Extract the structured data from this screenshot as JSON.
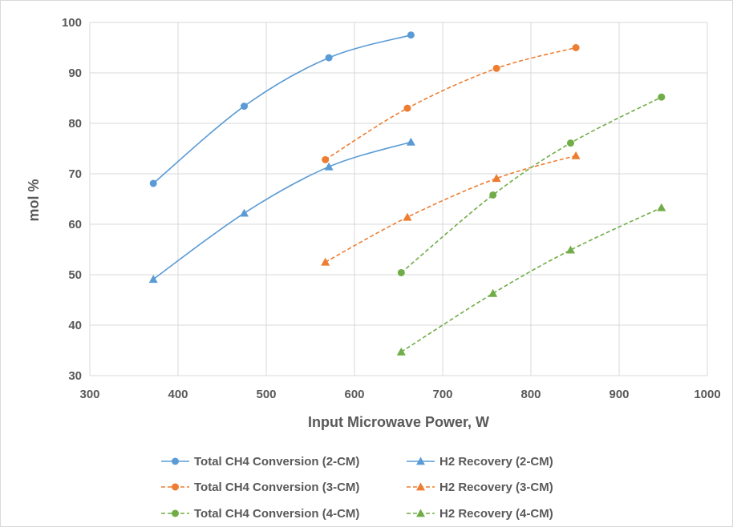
{
  "chart_data": {
    "type": "scatter",
    "xlabel": "Input Microwave Power, W",
    "ylabel": "mol %",
    "xlim": [
      300,
      1000
    ],
    "ylim": [
      30,
      100
    ],
    "x_ticks": [
      300,
      400,
      500,
      600,
      700,
      800,
      900,
      1000
    ],
    "y_ticks": [
      30,
      40,
      50,
      60,
      70,
      80,
      90,
      100
    ],
    "grid": true,
    "legend_position": "bottom",
    "series": [
      {
        "name": "Total CH4 Conversion (2-CM)",
        "color": "#5b9bd5",
        "marker": "circle",
        "dash": "solid",
        "x": [
          372,
          475,
          571,
          664
        ],
        "y": [
          68.1,
          83.4,
          93.0,
          97.5
        ]
      },
      {
        "name": "H2 Recovery (2-CM)",
        "color": "#5b9bd5",
        "marker": "triangle",
        "dash": "solid",
        "x": [
          372,
          475,
          571,
          664
        ],
        "y": [
          49.1,
          62.2,
          71.4,
          76.3
        ]
      },
      {
        "name": "Total CH4 Conversion (3-CM)",
        "color": "#ed7d31",
        "marker": "circle",
        "dash": "dashed",
        "x": [
          567,
          660,
          761,
          851
        ],
        "y": [
          72.8,
          83.0,
          90.9,
          95.0
        ]
      },
      {
        "name": "H2 Recovery (3-CM)",
        "color": "#ed7d31",
        "marker": "triangle",
        "dash": "dashed",
        "x": [
          567,
          660,
          761,
          851
        ],
        "y": [
          52.5,
          61.4,
          69.1,
          73.6
        ]
      },
      {
        "name": "Total CH4 Conversion (4-CM)",
        "color": "#70ad47",
        "marker": "circle",
        "dash": "dashed",
        "x": [
          653,
          757,
          845,
          948
        ],
        "y": [
          50.4,
          65.8,
          76.1,
          85.2
        ]
      },
      {
        "name": "H2 Recovery (4-CM)",
        "color": "#70ad47",
        "marker": "triangle",
        "dash": "dashed",
        "x": [
          653,
          757,
          845,
          948
        ],
        "y": [
          34.7,
          46.3,
          54.9,
          63.3
        ]
      }
    ]
  }
}
